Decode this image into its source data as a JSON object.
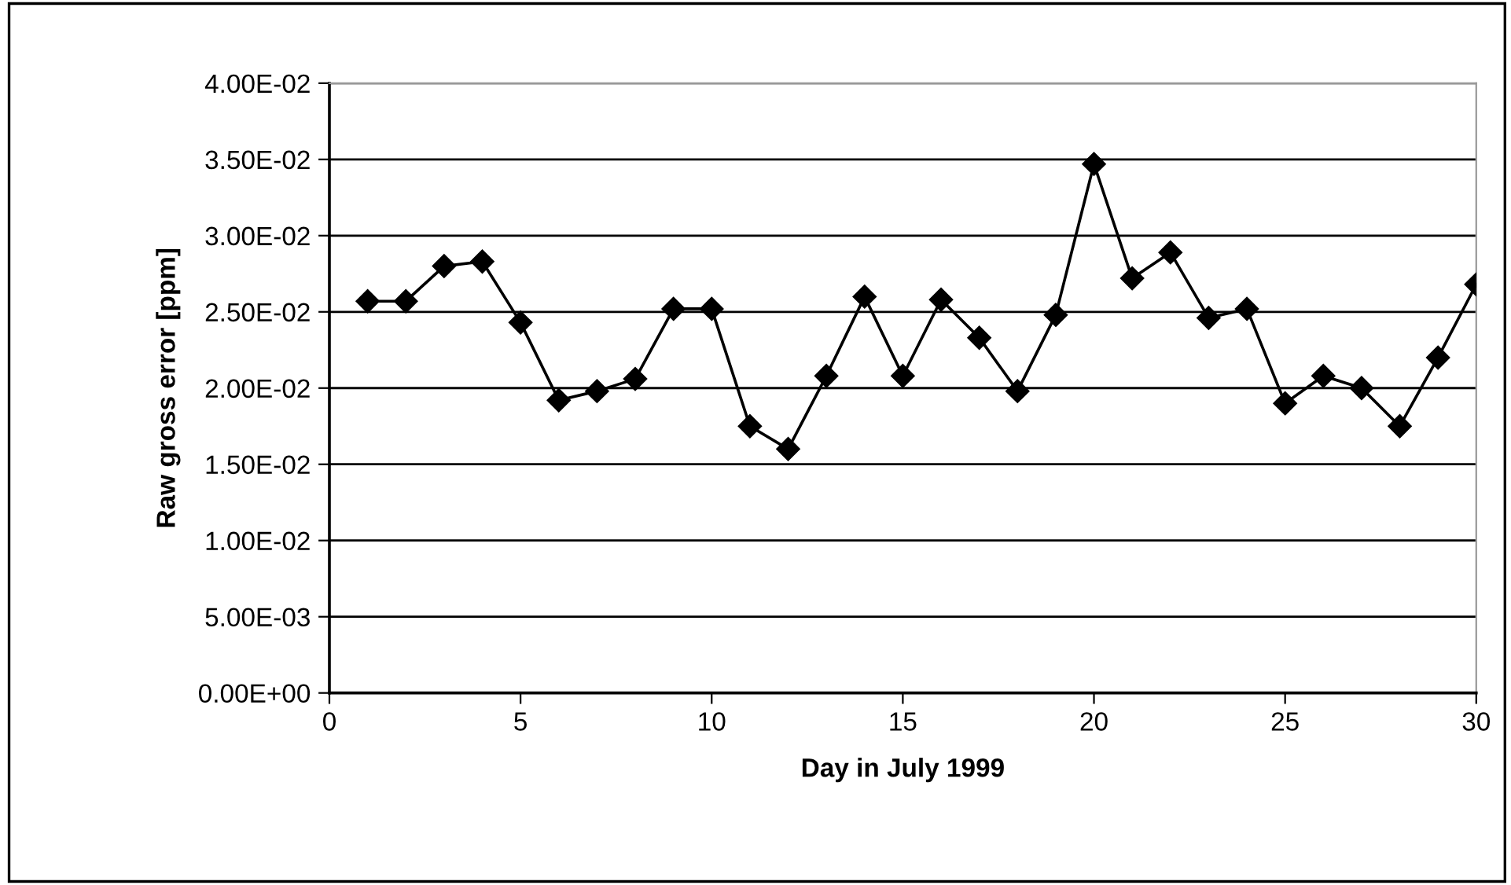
{
  "chart_data": {
    "type": "line",
    "xlabel": "Day in July 1999",
    "ylabel": "Raw gross error [ppm]",
    "x": [
      1,
      2,
      3,
      4,
      5,
      6,
      7,
      8,
      9,
      10,
      11,
      12,
      13,
      14,
      15,
      16,
      17,
      18,
      19,
      20,
      21,
      22,
      23,
      24,
      25,
      26,
      27,
      28,
      29,
      30
    ],
    "series": [
      {
        "color": "#000000",
        "values": [
          0.0257,
          0.0257,
          0.028,
          0.0283,
          0.0243,
          0.0192,
          0.0198,
          0.0206,
          0.0252,
          0.0252,
          0.0175,
          0.016,
          0.0208,
          0.026,
          0.0208,
          0.0258,
          0.0233,
          0.0198,
          0.0248,
          0.0347,
          0.0272,
          0.0289,
          0.0246,
          0.0252,
          0.019,
          0.0208,
          0.02,
          0.0175,
          0.022,
          0.0268
        ]
      }
    ],
    "xlim": [
      0,
      30
    ],
    "xticks": [
      0,
      5,
      10,
      15,
      20,
      25,
      30
    ],
    "ylim": [
      0,
      0.04
    ],
    "yticks": [
      {
        "value": 0,
        "label": "0.00E+00"
      },
      {
        "value": 0.005,
        "label": "5.00E-03"
      },
      {
        "value": 0.01,
        "label": "1.00E-02"
      },
      {
        "value": 0.015,
        "label": "1.50E-02"
      },
      {
        "value": 0.02,
        "label": "2.00E-02"
      },
      {
        "value": 0.025,
        "label": "2.50E-02"
      },
      {
        "value": 0.03,
        "label": "3.00E-02"
      },
      {
        "value": 0.035,
        "label": "3.50E-02"
      },
      {
        "value": 0.04,
        "label": "4.00E-02"
      }
    ],
    "grid": "y",
    "legend": false,
    "marker": "diamond",
    "line_style": "solid"
  }
}
